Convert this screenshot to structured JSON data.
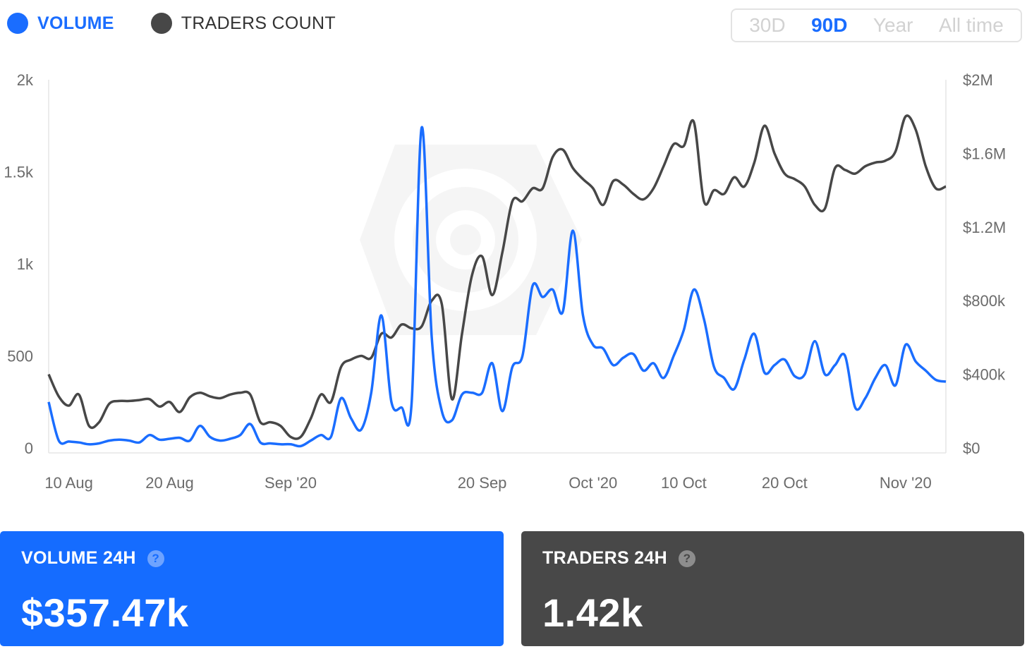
{
  "legend": {
    "volume": {
      "label": "VOLUME",
      "color": "#1a6dff"
    },
    "traders": {
      "label": "TRADERS COUNT",
      "color": "#474747"
    }
  },
  "periods": [
    {
      "label": "30D",
      "active": false
    },
    {
      "label": "90D",
      "active": true
    },
    {
      "label": "Year",
      "active": false
    },
    {
      "label": "All time",
      "active": false
    }
  ],
  "cards": {
    "volume": {
      "label": "VOLUME 24H",
      "value": "$357.47k",
      "help_icon": "question-circle-icon",
      "color": "#156cff"
    },
    "traders": {
      "label": "TRADERS 24H",
      "value": "1.42k",
      "help_icon": "question-circle-icon",
      "color": "#484848"
    }
  },
  "chart_data": {
    "type": "line",
    "x_ticks": [
      {
        "label": "10 Aug",
        "day": 2
      },
      {
        "label": "20 Aug",
        "day": 12
      },
      {
        "label": "Sep '20",
        "day": 24
      },
      {
        "label": "20 Sep",
        "day": 43
      },
      {
        "label": "Oct '20",
        "day": 54
      },
      {
        "label": "10 Oct",
        "day": 63
      },
      {
        "label": "20 Oct",
        "day": 73
      },
      {
        "label": "Nov '20",
        "day": 85
      }
    ],
    "x_range": [
      0,
      89
    ],
    "left_axis": {
      "ticks": [
        "0",
        "500",
        "1k",
        "1.5k",
        "2k"
      ],
      "range": [
        0,
        2000
      ]
    },
    "right_axis": {
      "ticks": [
        "$0",
        "$400k",
        "$800k",
        "$1.2M",
        "$1.6M",
        "$2M"
      ],
      "range": [
        0,
        2000000
      ]
    },
    "series": [
      {
        "name": "TRADERS COUNT",
        "axis": "left",
        "color": "#474747",
        "points": [
          [
            0,
            400
          ],
          [
            1,
            280
          ],
          [
            2,
            230
          ],
          [
            3,
            290
          ],
          [
            4,
            120
          ],
          [
            5,
            140
          ],
          [
            6,
            240
          ],
          [
            7,
            255
          ],
          [
            8,
            255
          ],
          [
            9,
            260
          ],
          [
            10,
            265
          ],
          [
            11,
            225
          ],
          [
            12,
            250
          ],
          [
            13,
            195
          ],
          [
            14,
            275
          ],
          [
            15,
            300
          ],
          [
            16,
            280
          ],
          [
            17,
            270
          ],
          [
            18,
            290
          ],
          [
            19,
            300
          ],
          [
            20,
            290
          ],
          [
            21,
            140
          ],
          [
            22,
            140
          ],
          [
            23,
            120
          ],
          [
            24,
            60
          ],
          [
            25,
            60
          ],
          [
            26,
            160
          ],
          [
            27,
            290
          ],
          [
            28,
            250
          ],
          [
            29,
            440
          ],
          [
            30,
            480
          ],
          [
            31,
            500
          ],
          [
            32,
            490
          ],
          [
            33,
            620
          ],
          [
            34,
            600
          ],
          [
            35,
            670
          ],
          [
            36,
            650
          ],
          [
            37,
            660
          ],
          [
            38,
            800
          ],
          [
            39,
            780
          ],
          [
            40,
            265
          ],
          [
            41,
            620
          ],
          [
            42,
            940
          ],
          [
            43,
            1040
          ],
          [
            44,
            830
          ],
          [
            45,
            1060
          ],
          [
            46,
            1340
          ],
          [
            47,
            1340
          ],
          [
            48,
            1410
          ],
          [
            49,
            1410
          ],
          [
            50,
            1580
          ],
          [
            51,
            1620
          ],
          [
            52,
            1520
          ],
          [
            53,
            1460
          ],
          [
            54,
            1410
          ],
          [
            55,
            1320
          ],
          [
            56,
            1450
          ],
          [
            57,
            1430
          ],
          [
            58,
            1380
          ],
          [
            59,
            1350
          ],
          [
            60,
            1410
          ],
          [
            61,
            1530
          ],
          [
            62,
            1650
          ],
          [
            63,
            1640
          ],
          [
            64,
            1770
          ],
          [
            65,
            1340
          ],
          [
            66,
            1400
          ],
          [
            67,
            1380
          ],
          [
            68,
            1470
          ],
          [
            69,
            1420
          ],
          [
            70,
            1550
          ],
          [
            71,
            1750
          ],
          [
            72,
            1600
          ],
          [
            73,
            1490
          ],
          [
            74,
            1460
          ],
          [
            75,
            1420
          ],
          [
            76,
            1320
          ],
          [
            77,
            1300
          ],
          [
            78,
            1520
          ],
          [
            79,
            1510
          ],
          [
            80,
            1490
          ],
          [
            81,
            1530
          ],
          [
            82,
            1550
          ],
          [
            83,
            1560
          ],
          [
            84,
            1610
          ],
          [
            85,
            1800
          ],
          [
            86,
            1730
          ],
          [
            87,
            1530
          ],
          [
            88,
            1410
          ],
          [
            89,
            1420
          ]
        ]
      },
      {
        "name": "VOLUME",
        "axis": "right",
        "color": "#1a6dff",
        "points": [
          [
            0,
            250000
          ],
          [
            1,
            40000
          ],
          [
            2,
            35000
          ],
          [
            3,
            30000
          ],
          [
            4,
            20000
          ],
          [
            5,
            25000
          ],
          [
            6,
            40000
          ],
          [
            7,
            45000
          ],
          [
            8,
            40000
          ],
          [
            9,
            30000
          ],
          [
            10,
            70000
          ],
          [
            11,
            45000
          ],
          [
            12,
            50000
          ],
          [
            13,
            55000
          ],
          [
            14,
            40000
          ],
          [
            15,
            120000
          ],
          [
            16,
            60000
          ],
          [
            17,
            40000
          ],
          [
            18,
            50000
          ],
          [
            19,
            70000
          ],
          [
            20,
            130000
          ],
          [
            21,
            30000
          ],
          [
            22,
            25000
          ],
          [
            23,
            20000
          ],
          [
            24,
            20000
          ],
          [
            25,
            10000
          ],
          [
            26,
            40000
          ],
          [
            27,
            70000
          ],
          [
            28,
            60000
          ],
          [
            29,
            270000
          ],
          [
            30,
            160000
          ],
          [
            31,
            100000
          ],
          [
            32,
            300000
          ],
          [
            33,
            720000
          ],
          [
            34,
            250000
          ],
          [
            35,
            220000
          ],
          [
            36,
            240000
          ],
          [
            37,
            1740000
          ],
          [
            38,
            600000
          ],
          [
            39,
            200000
          ],
          [
            40,
            150000
          ],
          [
            41,
            290000
          ],
          [
            42,
            300000
          ],
          [
            43,
            300000
          ],
          [
            44,
            460000
          ],
          [
            45,
            200000
          ],
          [
            46,
            440000
          ],
          [
            47,
            500000
          ],
          [
            48,
            880000
          ],
          [
            49,
            820000
          ],
          [
            50,
            860000
          ],
          [
            51,
            740000
          ],
          [
            52,
            1180000
          ],
          [
            53,
            720000
          ],
          [
            54,
            560000
          ],
          [
            55,
            540000
          ],
          [
            56,
            450000
          ],
          [
            57,
            490000
          ],
          [
            58,
            510000
          ],
          [
            59,
            420000
          ],
          [
            60,
            460000
          ],
          [
            61,
            380000
          ],
          [
            62,
            500000
          ],
          [
            63,
            640000
          ],
          [
            64,
            860000
          ],
          [
            65,
            700000
          ],
          [
            66,
            440000
          ],
          [
            67,
            380000
          ],
          [
            68,
            320000
          ],
          [
            69,
            480000
          ],
          [
            70,
            620000
          ],
          [
            71,
            410000
          ],
          [
            72,
            450000
          ],
          [
            73,
            480000
          ],
          [
            74,
            390000
          ],
          [
            75,
            400000
          ],
          [
            76,
            580000
          ],
          [
            77,
            400000
          ],
          [
            78,
            450000
          ],
          [
            79,
            500000
          ],
          [
            80,
            220000
          ],
          [
            81,
            270000
          ],
          [
            82,
            380000
          ],
          [
            83,
            450000
          ],
          [
            84,
            340000
          ],
          [
            85,
            560000
          ],
          [
            86,
            470000
          ],
          [
            87,
            420000
          ],
          [
            88,
            370000
          ],
          [
            89,
            360000
          ]
        ]
      }
    ]
  }
}
